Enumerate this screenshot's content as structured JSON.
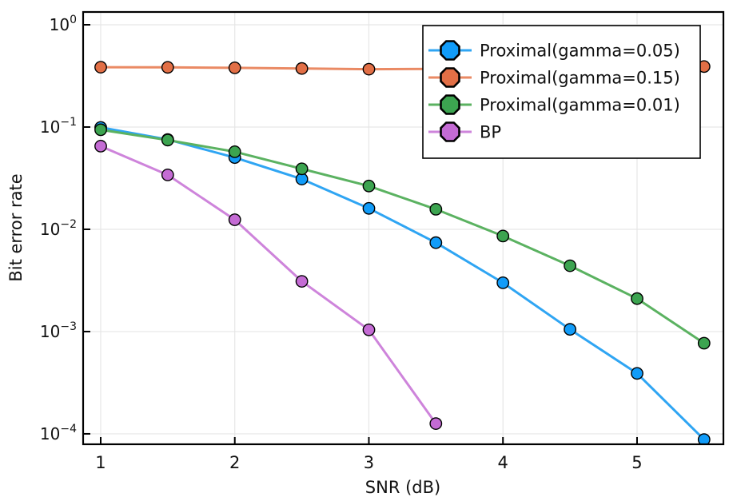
{
  "chart_data": {
    "type": "line",
    "title": "",
    "xlabel": "SNR (dB)",
    "ylabel": "Bit error rate",
    "x": [
      1,
      1.5,
      2,
      2.5,
      3,
      3.5,
      4,
      4.5,
      5,
      5.5
    ],
    "series": [
      {
        "name": "Proximal(gamma=0.05)",
        "color": "#119CF9",
        "line_color": "#2FA5F3",
        "values": [
          0.099,
          0.0755,
          0.0503,
          0.031,
          0.016,
          0.0074,
          0.003,
          0.00105,
          0.00039,
          8.8e-05
        ]
      },
      {
        "name": "Proximal(gamma=0.15)",
        "color": "#E26F46",
        "line_color": "#EA8A64",
        "values": [
          0.385,
          0.383,
          0.379,
          0.374,
          0.368,
          0.37,
          0.373,
          0.377,
          0.383,
          0.39
        ]
      },
      {
        "name": "Proximal(gamma=0.01)",
        "color": "#3CA450",
        "line_color": "#5BB261",
        "values": [
          0.094,
          0.0745,
          0.0573,
          0.039,
          0.0265,
          0.0157,
          0.0086,
          0.0044,
          0.0021,
          0.00077
        ]
      },
      {
        "name": "BP",
        "color": "#C46BD4",
        "line_color": "#CE84DB",
        "values": [
          0.065,
          0.034,
          0.0124,
          0.0031,
          0.00104,
          0.000126
        ]
      }
    ],
    "x_axis": {
      "ticks": [
        1,
        2,
        3,
        4,
        5
      ],
      "tick_labels": [
        "1",
        "2",
        "3",
        "4",
        "5"
      ],
      "range": [
        0.869,
        5.644
      ]
    },
    "y_axis": {
      "scale": "log10",
      "tick_exponents": [
        0,
        -1,
        -2,
        -3,
        -4
      ],
      "tick_base": "10",
      "range_log10": [
        -4.102,
        0.125
      ]
    },
    "legend": {
      "position": "top-right",
      "entries": [
        "Proximal(gamma=0.05)",
        "Proximal(gamma=0.15)",
        "Proximal(gamma=0.01)",
        "BP"
      ]
    },
    "grid": true,
    "marker_shape": "circle",
    "legend_marker_shape": "octagon"
  },
  "style_colors": {
    "frame": "#000000",
    "grid": "#e6e6e6",
    "marker_stroke": "#000000",
    "legend_border": "#000000",
    "legend_background": "#ffffff",
    "text": "#111111"
  }
}
